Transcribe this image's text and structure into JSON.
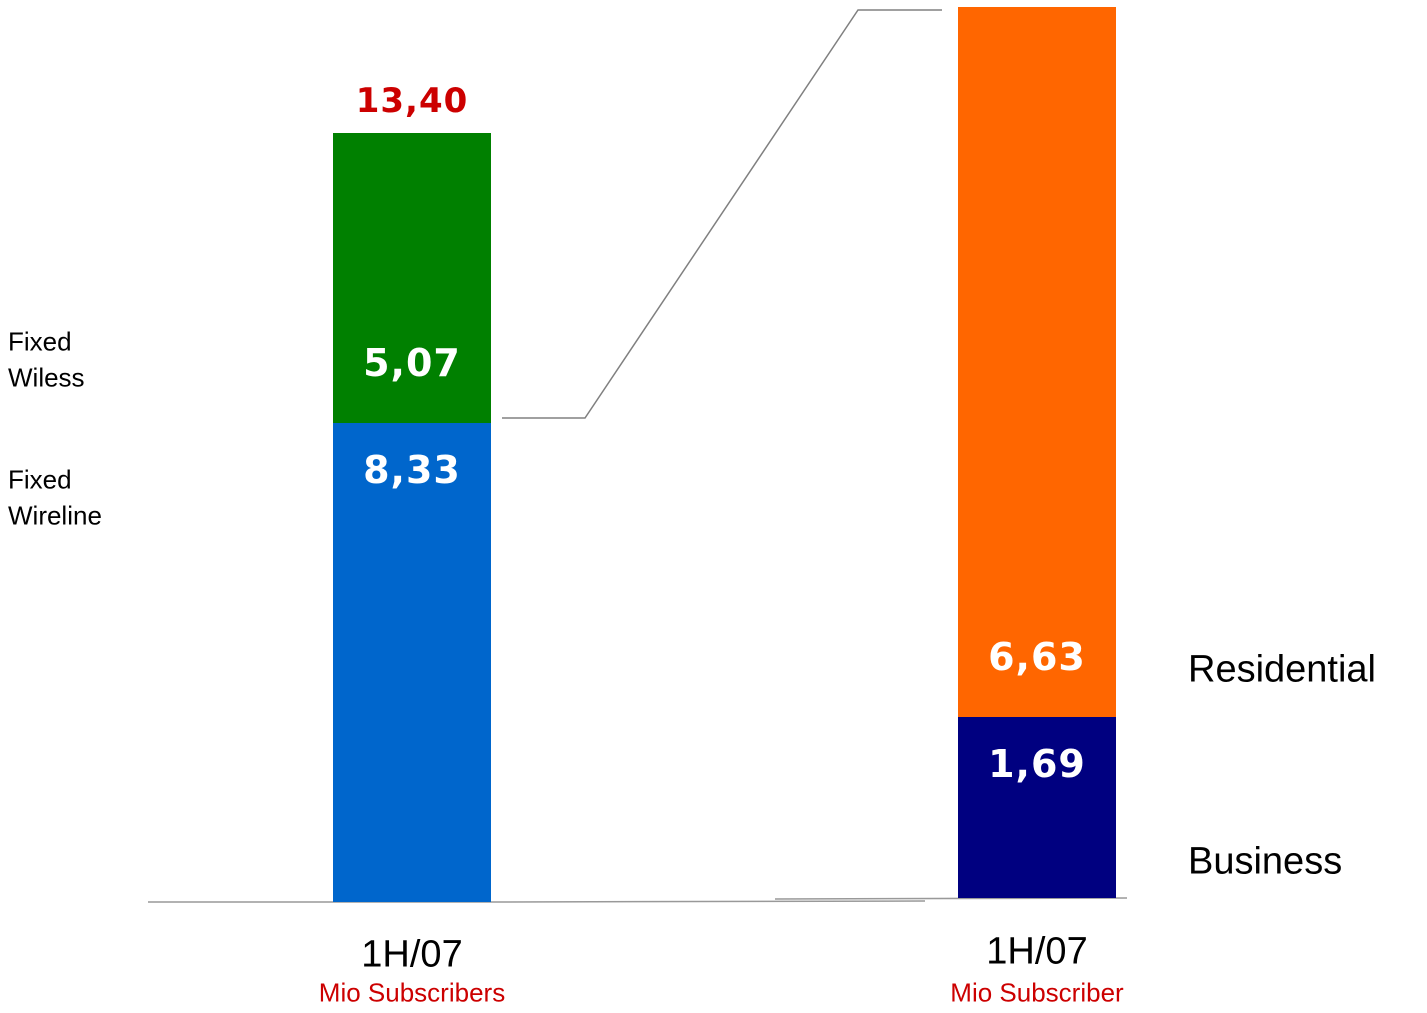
{
  "chart_data": [
    {
      "type": "stacked-bar",
      "categories": [
        "1H/07"
      ],
      "subtitle": "Mio Subscribers",
      "total": 13.4,
      "total_label": "13,40",
      "series": [
        {
          "name": "Fixed Wireline",
          "color": "#0066cc",
          "values": [
            8.33
          ],
          "value_labels": [
            "8,33"
          ]
        },
        {
          "name": "Fixed Wiless",
          "color": "#008000",
          "values": [
            5.07
          ],
          "value_labels": [
            "5,07"
          ]
        }
      ]
    },
    {
      "type": "stacked-bar",
      "categories": [
        "1H/07"
      ],
      "subtitle": "Mio Subscriber",
      "series": [
        {
          "name": "Business",
          "color": "#000080",
          "values": [
            1.69
          ],
          "value_labels": [
            "1,69"
          ]
        },
        {
          "name": "Residential",
          "color": "#ff6600",
          "values": [
            6.63
          ],
          "value_labels": [
            "6,63"
          ]
        }
      ]
    }
  ]
}
